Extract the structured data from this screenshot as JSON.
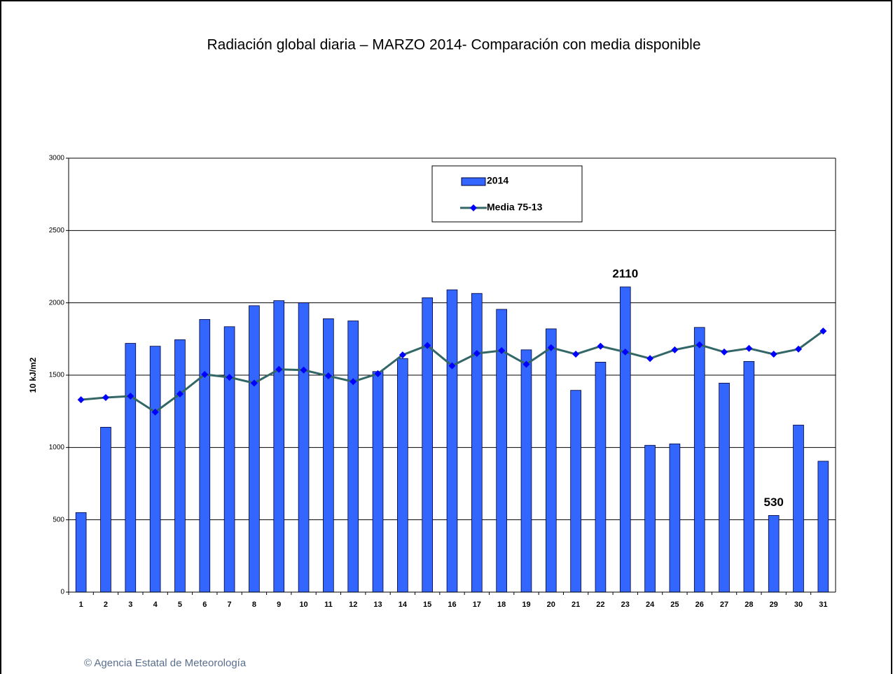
{
  "chart_data": {
    "type": "bar-line",
    "title": "Radiación global diaria –  MARZO 2014- Comparación con media disponible",
    "y_label": "10 kJ/m2",
    "footer": "© Agencia Estatal de Meteorología",
    "categories": [
      "1",
      "2",
      "3",
      "4",
      "5",
      "6",
      "7",
      "8",
      "9",
      "10",
      "11",
      "12",
      "13",
      "14",
      "15",
      "16",
      "17",
      "18",
      "19",
      "20",
      "21",
      "22",
      "23",
      "24",
      "25",
      "26",
      "27",
      "28",
      "29",
      "30",
      "31"
    ],
    "series": [
      {
        "name": "2014",
        "type": "bar",
        "color": "#3366ff",
        "values": [
          550,
          1140,
          1720,
          1700,
          1745,
          1885,
          1835,
          1980,
          2015,
          2000,
          1890,
          1875,
          1525,
          1615,
          2035,
          2090,
          2065,
          1955,
          1675,
          1820,
          1395,
          1590,
          2110,
          1015,
          1025,
          1830,
          1445,
          1595,
          530,
          1155,
          905
        ],
        "value_labels": [
          null,
          null,
          null,
          null,
          null,
          null,
          null,
          null,
          null,
          null,
          null,
          null,
          null,
          null,
          null,
          null,
          null,
          null,
          null,
          null,
          null,
          null,
          "2110",
          null,
          null,
          null,
          null,
          null,
          "530",
          null,
          null
        ]
      },
      {
        "name": "Media 75-13",
        "type": "line",
        "color": "#336666",
        "marker_color": "#0000ff",
        "values": [
          1330,
          1345,
          1355,
          1245,
          1370,
          1505,
          1485,
          1445,
          1540,
          1535,
          1495,
          1455,
          1510,
          1640,
          1705,
          1565,
          1650,
          1670,
          1575,
          1690,
          1645,
          1700,
          1660,
          1615,
          1675,
          1710,
          1660,
          1685,
          1645,
          1680,
          1805
        ]
      }
    ],
    "ylim": [
      0,
      3000
    ],
    "yticks": [
      0,
      500,
      1000,
      1500,
      2000,
      2500,
      3000
    ],
    "grid": true,
    "legend": "top"
  }
}
